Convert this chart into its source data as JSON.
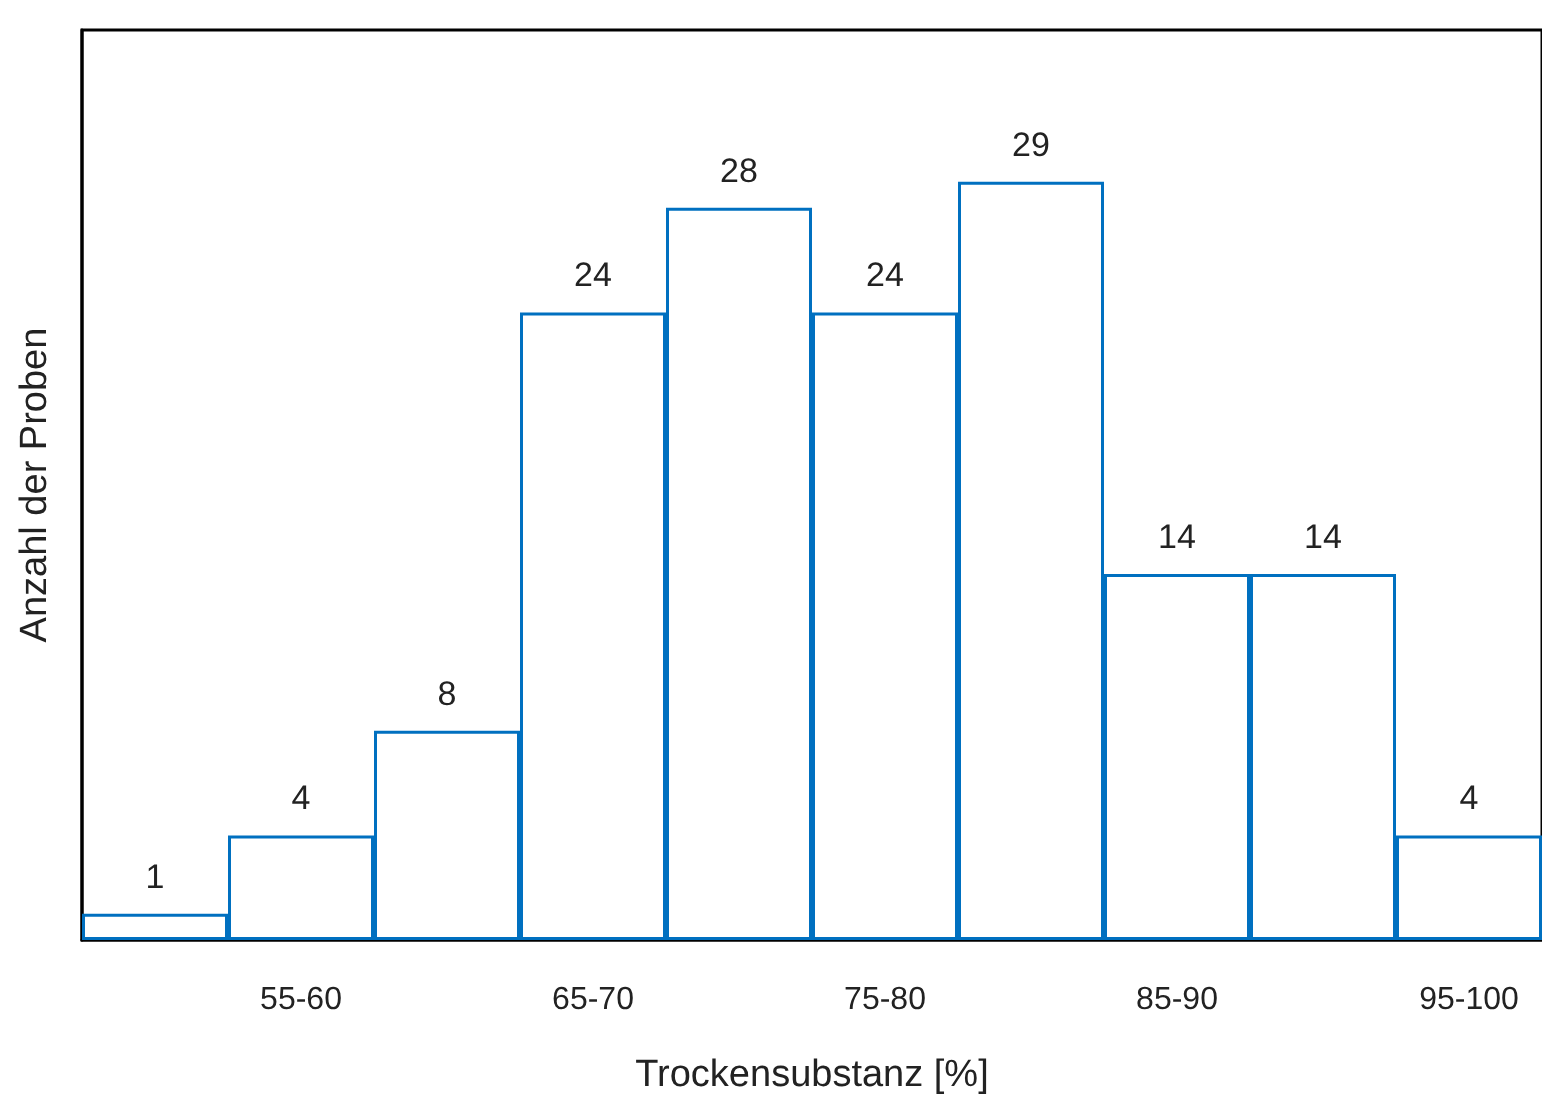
{
  "chart_data": {
    "type": "bar",
    "xlabel": "Trockensubstanz [%]",
    "ylabel": "Anzahl der Proben",
    "categories": [
      null,
      "55-60",
      null,
      "65-70",
      null,
      "75-80",
      null,
      "85-90",
      null,
      "95-100"
    ],
    "values": [
      1,
      4,
      8,
      24,
      28,
      24,
      29,
      14,
      14,
      4
    ],
    "color": "#0070c0",
    "data_labels": true,
    "tick_labels": "x",
    "grid": false
  }
}
